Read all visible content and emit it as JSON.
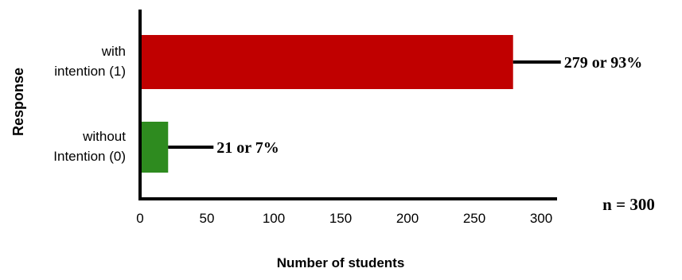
{
  "chart_data": {
    "type": "bar",
    "orientation": "horizontal",
    "title": "",
    "xlabel": "Number of students",
    "ylabel": "Response",
    "xlim": [
      0,
      300
    ],
    "xticks": [
      0,
      50,
      100,
      150,
      200,
      250,
      300
    ],
    "grid": false,
    "legend": "none",
    "categories": [
      {
        "label_lines": [
          "with",
          "intention (1)"
        ]
      },
      {
        "label_lines": [
          "without",
          "Intention (0)"
        ]
      }
    ],
    "values": [
      279,
      21
    ],
    "data_labels": [
      "279 or 93%",
      "21 or 7%"
    ],
    "colors": [
      "#c00000",
      "#2e8b1f"
    ],
    "annotation": "n = 300"
  }
}
